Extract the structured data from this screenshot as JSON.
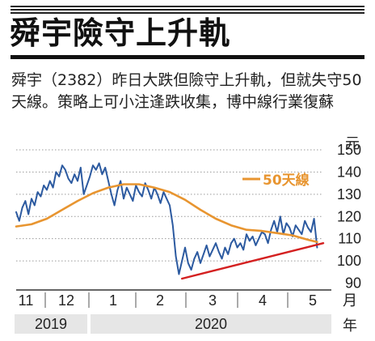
{
  "header": {
    "title": "舜宇險守上升軌",
    "caption": "舜宇（2382）昨日大跌但險守上升軌，但就失守50天線。策略上可小注逢跌收集，博中線行業復蘇"
  },
  "chart_data": {
    "type": "line",
    "unit_label": "元",
    "x_unit_label": "月",
    "year_unit_label": "年",
    "ylim": [
      88,
      150
    ],
    "yticks": [
      90,
      100,
      110,
      120,
      130,
      140,
      150
    ],
    "month_ticks": [
      "11",
      "12",
      "1",
      "2",
      "3",
      "4",
      "5"
    ],
    "years": [
      "2019",
      "2020"
    ],
    "legend": {
      "position": "top-right"
    },
    "colors": {
      "price": "#2c5aa0",
      "ma": "#e89530",
      "trend": "#d42020"
    },
    "series": [
      {
        "name": "price",
        "x": [
          0,
          2,
          4,
          6,
          8,
          10,
          12,
          14,
          16,
          18,
          20,
          22,
          24,
          26,
          28,
          30,
          32,
          34,
          36,
          38,
          40,
          42,
          44,
          46,
          48,
          50,
          52,
          54,
          56,
          58,
          60,
          62,
          64,
          66,
          68,
          70,
          72,
          74,
          76,
          78,
          80,
          82,
          84,
          86,
          88,
          90,
          92,
          94,
          96,
          98,
          100,
          102,
          104,
          106,
          108,
          110,
          112,
          114,
          116,
          118,
          120,
          122,
          124,
          126,
          128,
          130,
          132,
          134,
          136,
          138,
          140,
          142,
          144,
          146,
          148,
          150,
          152,
          154,
          156,
          158,
          160,
          162,
          164,
          166,
          168,
          170,
          172,
          174,
          176,
          178,
          180,
          182,
          184,
          186,
          188,
          190,
          192,
          194,
          196
        ],
        "values": [
          122,
          118,
          124,
          127,
          121,
          128,
          125,
          131,
          129,
          134,
          132,
          136,
          133,
          140,
          138,
          143,
          141,
          137,
          135,
          139,
          136,
          142,
          130,
          134,
          138,
          143,
          141,
          144,
          139,
          142,
          136,
          130,
          125,
          132,
          136,
          128,
          133,
          130,
          127,
          134,
          131,
          129,
          135,
          132,
          128,
          133,
          130,
          126,
          131,
          128,
          125,
          116,
          102,
          94,
          100,
          106,
          99,
          96,
          101,
          104,
          99,
          103,
          107,
          102,
          105,
          108,
          104,
          101,
          106,
          103,
          108,
          110,
          106,
          108,
          105,
          112,
          109,
          111,
          107,
          110,
          113,
          112,
          108,
          114,
          118,
          113,
          120,
          112,
          117,
          115,
          111,
          116,
          114,
          112,
          118,
          115,
          113,
          119,
          106
        ]
      },
      {
        "name": "50天線",
        "x": [
          0,
          10,
          20,
          30,
          40,
          50,
          60,
          70,
          80,
          90,
          100,
          110,
          120,
          130,
          140,
          150,
          160,
          170,
          180,
          190,
          196
        ],
        "values": [
          115.5,
          116.5,
          119,
          123,
          127,
          130.5,
          133,
          134.5,
          134.5,
          133,
          131,
          127.5,
          123,
          119,
          116,
          114,
          113.5,
          112.5,
          111.5,
          109.5,
          108.5
        ]
      },
      {
        "name": "trend",
        "x": [
          108,
          200
        ],
        "values": [
          92,
          108
        ]
      }
    ]
  }
}
